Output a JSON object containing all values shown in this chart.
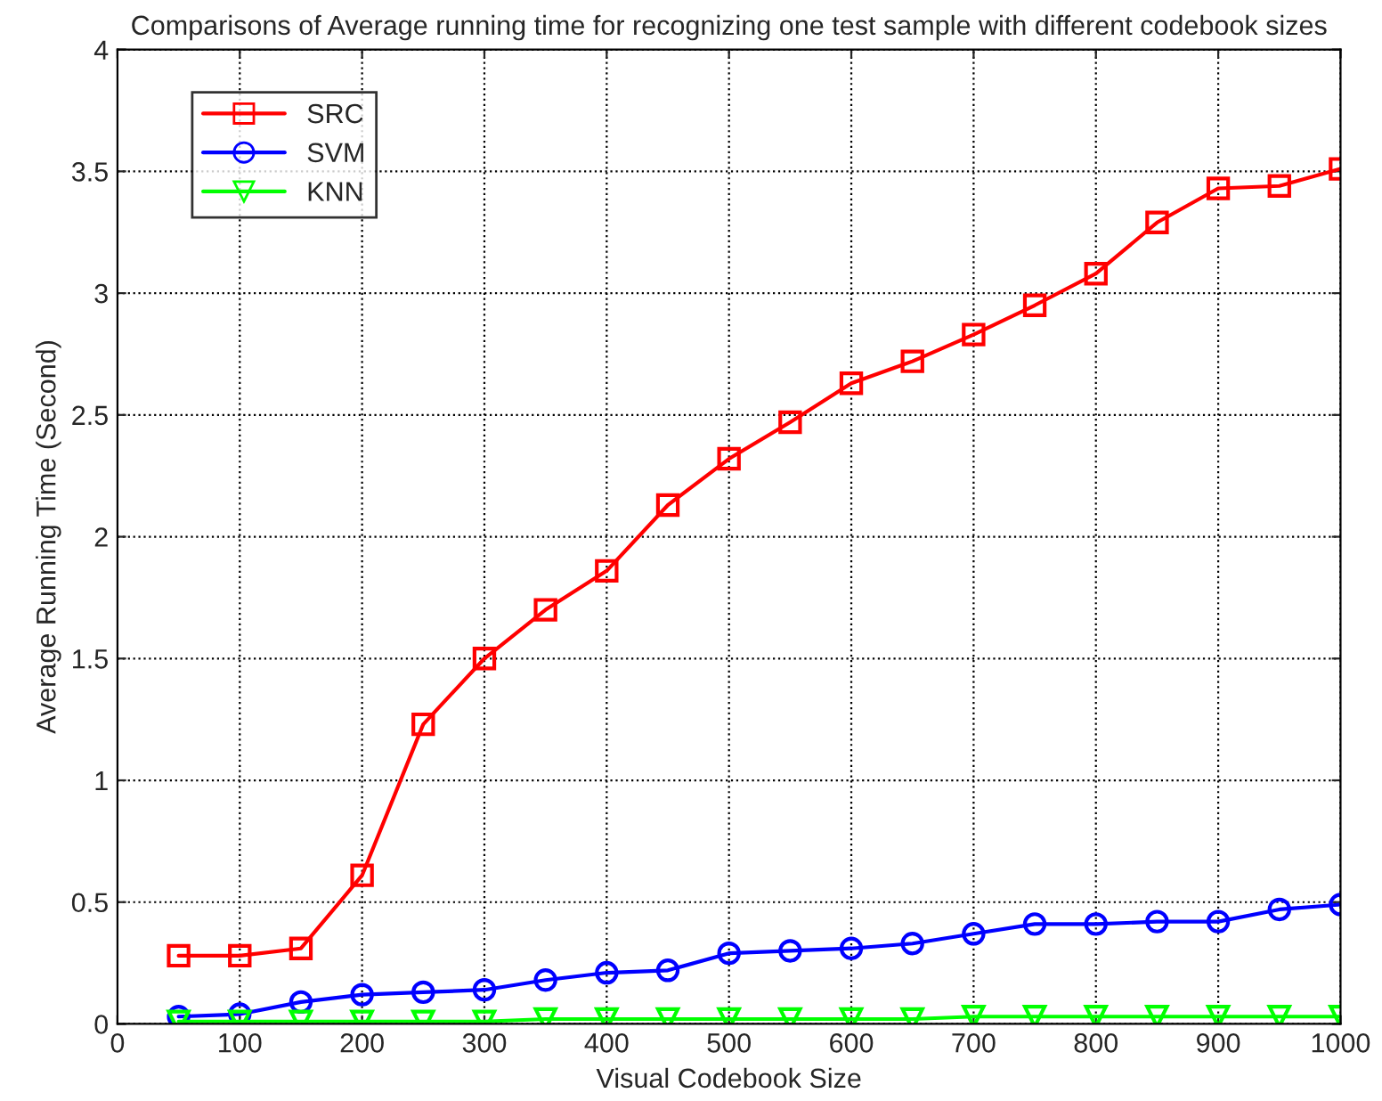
{
  "chart_data": {
    "type": "line",
    "title": "Comparisons of Average running time for recognizing one test sample with different codebook sizes",
    "xlabel": "Visual Codebook Size",
    "ylabel": "Average Running Time (Second)",
    "x": [
      50,
      100,
      150,
      200,
      250,
      300,
      350,
      400,
      450,
      500,
      550,
      600,
      650,
      700,
      750,
      800,
      850,
      900,
      950,
      1000
    ],
    "series": [
      {
        "name": "SRC",
        "color": "#ff0000",
        "marker": "square",
        "values": [
          0.28,
          0.28,
          0.31,
          0.61,
          1.23,
          1.5,
          1.7,
          1.86,
          2.13,
          2.32,
          2.47,
          2.63,
          2.72,
          2.83,
          2.95,
          3.08,
          3.29,
          3.43,
          3.44,
          3.51
        ]
      },
      {
        "name": "SVM",
        "color": "#0000ff",
        "marker": "circle",
        "values": [
          0.03,
          0.04,
          0.09,
          0.12,
          0.13,
          0.14,
          0.18,
          0.21,
          0.22,
          0.29,
          0.3,
          0.31,
          0.33,
          0.37,
          0.41,
          0.41,
          0.42,
          0.42,
          0.47,
          0.49
        ]
      },
      {
        "name": "KNN",
        "color": "#00ff00",
        "marker": "triangle",
        "values": [
          0.01,
          0.01,
          0.01,
          0.01,
          0.01,
          0.01,
          0.02,
          0.02,
          0.02,
          0.02,
          0.02,
          0.02,
          0.02,
          0.03,
          0.03,
          0.03,
          0.03,
          0.03,
          0.03,
          0.03
        ]
      }
    ],
    "xlim": [
      0,
      1000
    ],
    "xticks": [
      0,
      100,
      200,
      300,
      400,
      500,
      600,
      700,
      800,
      900,
      1000
    ],
    "ylim": [
      0,
      4
    ],
    "yticks": [
      0,
      0.5,
      1,
      1.5,
      2,
      2.5,
      3,
      3.5,
      4
    ],
    "grid": true,
    "legend": "top left",
    "line_style": "solid"
  }
}
